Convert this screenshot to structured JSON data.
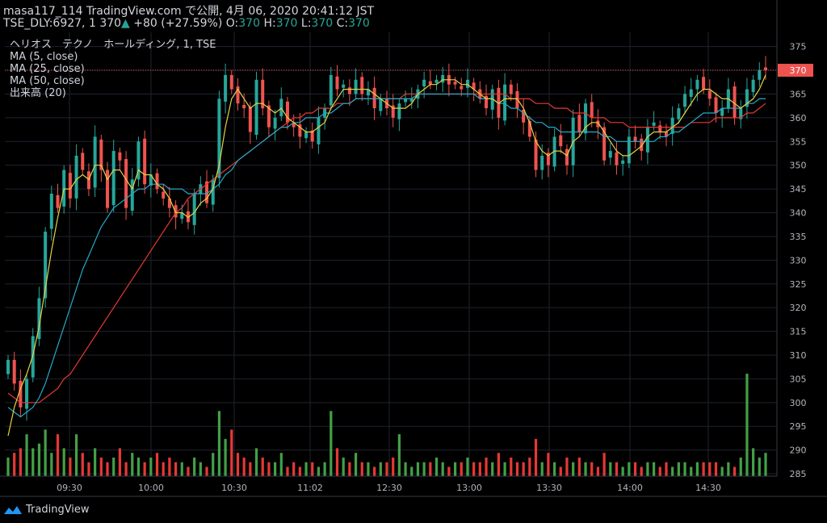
{
  "header": {
    "line1": "masa117_114 TradingView.com で公開, 4月 06, 2020 20:41:12 JST",
    "symbol": "TSE_DLY:6927, 1",
    "last": "370",
    "change": "+80 (+27.59%)",
    "o_label": "O:",
    "o_value": "370",
    "h_label": "H:",
    "h_value": "370",
    "l_label": "L:",
    "l_value": "370",
    "c_label": "C:",
    "c_value": "370"
  },
  "legend": {
    "name": "ヘリオス　テクノ　ホールディング, 1, TSE",
    "ma5": "MA (5, close)",
    "ma25": "MA (25, close)",
    "ma50": "MA (50, close)",
    "volume": "出来高 (20)"
  },
  "footer": {
    "brand": "TradingView"
  },
  "chart_data": {
    "type": "candlestick",
    "y_ticks": [
      285,
      290,
      295,
      300,
      305,
      310,
      315,
      320,
      325,
      330,
      335,
      340,
      345,
      350,
      355,
      360,
      365,
      370,
      375
    ],
    "ylim": [
      284.5,
      378
    ],
    "x_ticks": [
      "09:30",
      "10:00",
      "10:30",
      "11:02",
      "12:30",
      "13:00",
      "13:30",
      "14:00",
      "14:30"
    ],
    "last_price_label": "370",
    "colors": {
      "up": "#26a69a",
      "down": "#ef5350",
      "ma5": "#e6d044",
      "ma25": "#26a9c9",
      "ma50": "#e53935",
      "vol_up": "#43a047",
      "vol_down": "#e53935",
      "grid": "#1f2330",
      "last_line": "#ef5350"
    },
    "close_series": [
      309,
      304,
      299,
      305,
      314,
      322,
      336,
      344,
      341,
      349,
      343,
      352,
      349,
      345,
      356,
      349,
      341,
      353,
      351,
      341,
      347,
      355,
      346,
      348,
      345,
      343,
      341,
      339,
      340,
      338,
      344,
      346,
      342,
      347,
      364,
      369,
      366,
      363,
      362,
      357,
      368,
      362,
      358,
      360,
      364,
      359,
      358,
      356,
      357,
      355,
      360,
      362,
      369,
      366,
      367,
      365,
      368,
      365,
      366,
      362,
      364,
      362,
      360,
      363,
      364,
      364,
      366,
      368,
      367,
      368,
      369,
      367,
      367,
      366,
      368,
      366,
      364,
      362,
      366,
      360,
      367,
      365,
      362,
      359,
      356,
      349,
      352,
      350,
      356,
      354,
      350,
      360,
      357,
      363,
      360,
      358,
      351,
      353,
      350,
      351,
      356,
      355,
      353,
      358,
      359,
      357,
      356,
      360,
      362,
      365,
      366,
      368,
      366,
      364,
      361,
      362,
      366,
      360,
      362,
      366,
      368,
      370,
      370
    ],
    "ma5_series": [
      293,
      299,
      303,
      306,
      310,
      316,
      324,
      332,
      339,
      345,
      345,
      347,
      348,
      347,
      350,
      350,
      347,
      349,
      349,
      347,
      345,
      349,
      348,
      348,
      346,
      345,
      343,
      340,
      340,
      339,
      340,
      342,
      343,
      345,
      350,
      358,
      364,
      366,
      364,
      362,
      363,
      363,
      362,
      361,
      362,
      360,
      359,
      358,
      357,
      357,
      358,
      359,
      362,
      364,
      366,
      366,
      366,
      366,
      366,
      365,
      364,
      363,
      362,
      362,
      362,
      363,
      365,
      366,
      367,
      367,
      368,
      368,
      368,
      367,
      367,
      366,
      365,
      364,
      364,
      363,
      364,
      364,
      364,
      362,
      359,
      355,
      353,
      352,
      353,
      353,
      352,
      355,
      356,
      358,
      359,
      359,
      357,
      355,
      353,
      352,
      352,
      353,
      354,
      356,
      357,
      357,
      357,
      358,
      359,
      361,
      363,
      365,
      366,
      366,
      365,
      364,
      364,
      363,
      362,
      363,
      364,
      366,
      369
    ],
    "ma25_series": [
      299,
      298,
      297,
      298,
      299,
      301,
      304,
      308,
      312,
      316,
      320,
      324,
      328,
      331,
      334,
      337,
      339,
      341,
      342,
      343,
      344,
      345,
      345,
      346,
      346,
      346,
      345,
      345,
      345,
      344,
      344,
      344,
      344,
      345,
      346,
      348,
      349,
      351,
      352,
      353,
      354,
      355,
      356,
      357,
      358,
      358,
      359,
      359,
      360,
      360,
      360,
      361,
      361,
      362,
      363,
      363,
      364,
      364,
      364,
      364,
      364,
      364,
      364,
      364,
      364,
      364,
      365,
      365,
      365,
      365,
      365,
      365,
      365,
      365,
      365,
      365,
      364,
      364,
      364,
      363,
      363,
      362,
      362,
      361,
      360,
      359,
      359,
      358,
      358,
      357,
      357,
      357,
      357,
      357,
      357,
      357,
      356,
      356,
      355,
      355,
      355,
      355,
      355,
      355,
      355,
      356,
      356,
      357,
      357,
      358,
      359,
      360,
      361,
      361,
      361,
      362,
      362,
      362,
      362,
      363,
      363,
      364,
      364
    ],
    "ma50_series": [
      302,
      301,
      300,
      300,
      300,
      300,
      301,
      302,
      303,
      305,
      306,
      308,
      310,
      312,
      314,
      316,
      318,
      320,
      322,
      324,
      326,
      328,
      330,
      332,
      334,
      336,
      338,
      340,
      341,
      343,
      344,
      345,
      346,
      347,
      348,
      349,
      350,
      351,
      352,
      353,
      354,
      355,
      356,
      357,
      358,
      359,
      360,
      360,
      361,
      361,
      362,
      362,
      362,
      363,
      363,
      363,
      364,
      364,
      364,
      364,
      364,
      364,
      364,
      364,
      365,
      365,
      365,
      365,
      365,
      365,
      365,
      365,
      365,
      365,
      365,
      365,
      365,
      365,
      365,
      365,
      365,
      364,
      364,
      364,
      364,
      363,
      363,
      363,
      362,
      362,
      362,
      361,
      361,
      361,
      360,
      360,
      360,
      359,
      359,
      359,
      358,
      358,
      358,
      358,
      358,
      358,
      358,
      358,
      358,
      358,
      359,
      359,
      359,
      359,
      360,
      360,
      360,
      360,
      360,
      361,
      361,
      362,
      363
    ],
    "volume_series": [
      4,
      5,
      6,
      9,
      6,
      7,
      10,
      5,
      9,
      6,
      4,
      9,
      5,
      3,
      6,
      4,
      3,
      4,
      6,
      3,
      5,
      4,
      3,
      4,
      5,
      3,
      4,
      3,
      3,
      2,
      4,
      3,
      2,
      5,
      14,
      8,
      10,
      5,
      4,
      3,
      6,
      4,
      3,
      3,
      5,
      2,
      3,
      2,
      3,
      3,
      2,
      3,
      14,
      6,
      4,
      3,
      5,
      3,
      3,
      2,
      3,
      3,
      4,
      9,
      3,
      2,
      3,
      3,
      3,
      4,
      3,
      2,
      3,
      3,
      4,
      3,
      3,
      4,
      3,
      5,
      3,
      4,
      3,
      3,
      4,
      8,
      3,
      5,
      3,
      2,
      4,
      3,
      4,
      3,
      3,
      2,
      5,
      3,
      3,
      2,
      3,
      3,
      2,
      3,
      3,
      2,
      3,
      2,
      3,
      3,
      2,
      3,
      3,
      3,
      3,
      2,
      3,
      2,
      4,
      22,
      6,
      4,
      5
    ],
    "volume_ylim": [
      0,
      26
    ]
  }
}
